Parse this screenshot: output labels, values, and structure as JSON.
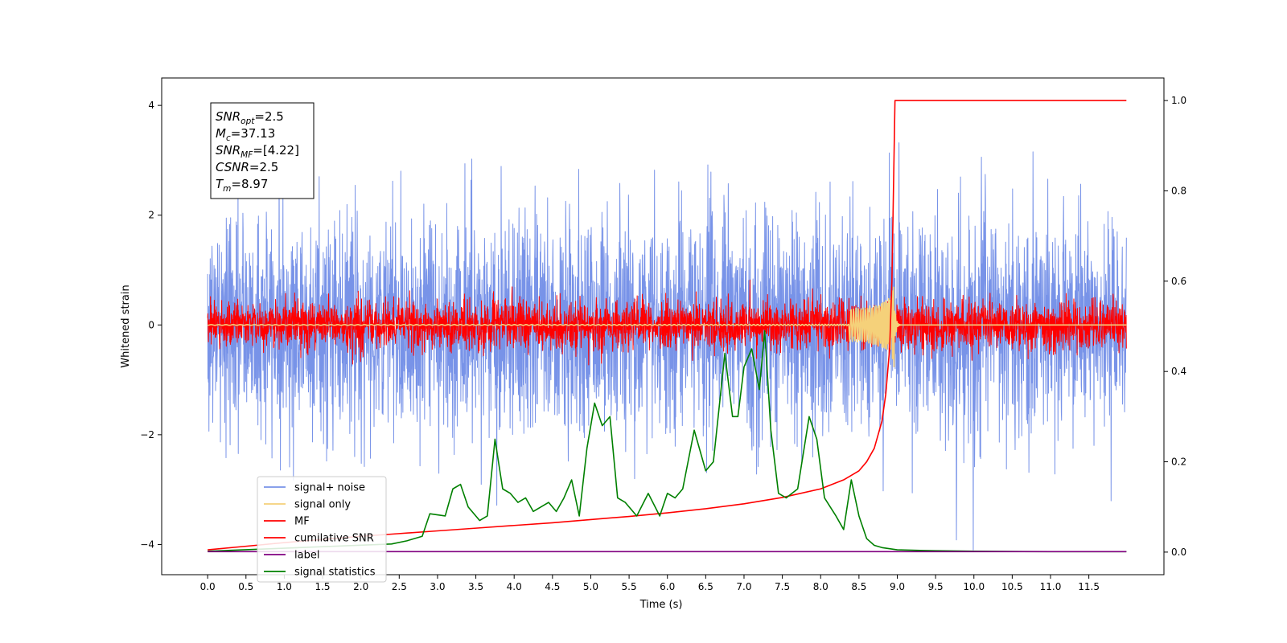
{
  "chart_data": {
    "type": "line",
    "title": "",
    "xlabel": "Time (s)",
    "ylabel": "Whitened strain",
    "xlim": [
      -0.6,
      12.48
    ],
    "ylim": [
      -4.55,
      4.5
    ],
    "y2lim": [
      -0.05,
      1.05
    ],
    "grid": false,
    "legend_position": "lower-left",
    "x_ticks": [
      "0.0",
      "0.5",
      "1.0",
      "1.5",
      "2.0",
      "2.5",
      "3.0",
      "3.5",
      "4.0",
      "4.5",
      "5.0",
      "5.5",
      "6.0",
      "6.5",
      "7.0",
      "7.5",
      "8.0",
      "8.5",
      "9.0",
      "9.5",
      "10.0",
      "10.5",
      "11.0",
      "11.5"
    ],
    "y_ticks": [
      "4",
      "2",
      "0",
      "−2",
      "−4"
    ],
    "y2_ticks": [
      "1.0",
      "0.8",
      "0.6",
      "0.4",
      "0.2",
      "0.0"
    ],
    "info_box": {
      "lines": [
        {
          "base": "SNR",
          "sub": "opt",
          "value": "=2.5"
        },
        {
          "base": "M",
          "sub": "c",
          "value": "=37.13"
        },
        {
          "base": "SNR",
          "sub": "MF",
          "value": "=[4.22]"
        },
        {
          "base": "CSNR",
          "sub": "",
          "value": "=2.5"
        },
        {
          "base": "T",
          "sub": "m",
          "value": "=8.97"
        }
      ]
    },
    "series": [
      {
        "name": "signal+ noise",
        "color": "#7893e8",
        "axis": "left",
        "kind": "noise",
        "x_range": [
          0,
          11.99
        ],
        "std": 1.0
      },
      {
        "name": "signal only",
        "color": "#f5d17a",
        "axis": "left",
        "kind": "chirp",
        "x_range": [
          0,
          11.99
        ],
        "merger": 8.97
      },
      {
        "name": "MF",
        "color": "#ff0000",
        "axis": "left",
        "kind": "noise",
        "x_range": [
          0,
          11.99
        ],
        "std": 0.22
      },
      {
        "name": "cumilative SNR",
        "color": "#ff0000",
        "axis": "right",
        "kind": "line",
        "x": [
          0.0,
          0.5,
          1.0,
          1.5,
          2.0,
          2.5,
          3.0,
          3.5,
          4.0,
          4.5,
          5.0,
          5.5,
          6.0,
          6.5,
          7.0,
          7.5,
          8.0,
          8.3,
          8.5,
          8.6,
          8.7,
          8.8,
          8.85,
          8.9,
          8.93,
          8.95,
          8.97,
          11.99
        ],
        "y": [
          0.005,
          0.013,
          0.021,
          0.028,
          0.035,
          0.041,
          0.047,
          0.053,
          0.059,
          0.065,
          0.072,
          0.079,
          0.087,
          0.096,
          0.107,
          0.121,
          0.14,
          0.16,
          0.18,
          0.2,
          0.23,
          0.29,
          0.35,
          0.45,
          0.6,
          0.8,
          1.0,
          1.0
        ]
      },
      {
        "name": "label",
        "color": "#800080",
        "axis": "right",
        "kind": "line",
        "x": [
          0.0,
          11.99
        ],
        "y": [
          0.001,
          0.001
        ]
      },
      {
        "name": "signal statistics",
        "color": "#008000",
        "axis": "right",
        "kind": "line",
        "x": [
          0.0,
          0.3,
          0.6,
          0.9,
          1.2,
          1.5,
          1.8,
          2.1,
          2.4,
          2.6,
          2.8,
          2.9,
          3.1,
          3.2,
          3.3,
          3.4,
          3.55,
          3.65,
          3.75,
          3.85,
          3.95,
          4.05,
          4.15,
          4.25,
          4.35,
          4.45,
          4.55,
          4.65,
          4.75,
          4.85,
          4.95,
          5.05,
          5.15,
          5.25,
          5.35,
          5.45,
          5.6,
          5.75,
          5.9,
          6.0,
          6.1,
          6.2,
          6.35,
          6.5,
          6.6,
          6.75,
          6.85,
          6.92,
          7.0,
          7.1,
          7.2,
          7.27,
          7.35,
          7.45,
          7.55,
          7.7,
          7.85,
          7.95,
          8.05,
          8.2,
          8.3,
          8.4,
          8.5,
          8.6,
          8.7,
          8.8,
          9.0,
          9.5,
          10.0,
          11.0,
          11.99
        ],
        "y": [
          0.002,
          0.004,
          0.006,
          0.008,
          0.01,
          0.012,
          0.014,
          0.016,
          0.018,
          0.025,
          0.035,
          0.085,
          0.08,
          0.14,
          0.15,
          0.1,
          0.07,
          0.08,
          0.25,
          0.14,
          0.13,
          0.11,
          0.12,
          0.09,
          0.1,
          0.11,
          0.09,
          0.12,
          0.16,
          0.08,
          0.23,
          0.33,
          0.28,
          0.3,
          0.12,
          0.11,
          0.08,
          0.13,
          0.08,
          0.13,
          0.12,
          0.14,
          0.27,
          0.18,
          0.2,
          0.44,
          0.3,
          0.3,
          0.41,
          0.45,
          0.36,
          0.49,
          0.27,
          0.13,
          0.12,
          0.14,
          0.3,
          0.25,
          0.12,
          0.08,
          0.05,
          0.16,
          0.08,
          0.03,
          0.015,
          0.01,
          0.005,
          0.003,
          0.002,
          0.001,
          0.001
        ]
      }
    ]
  }
}
